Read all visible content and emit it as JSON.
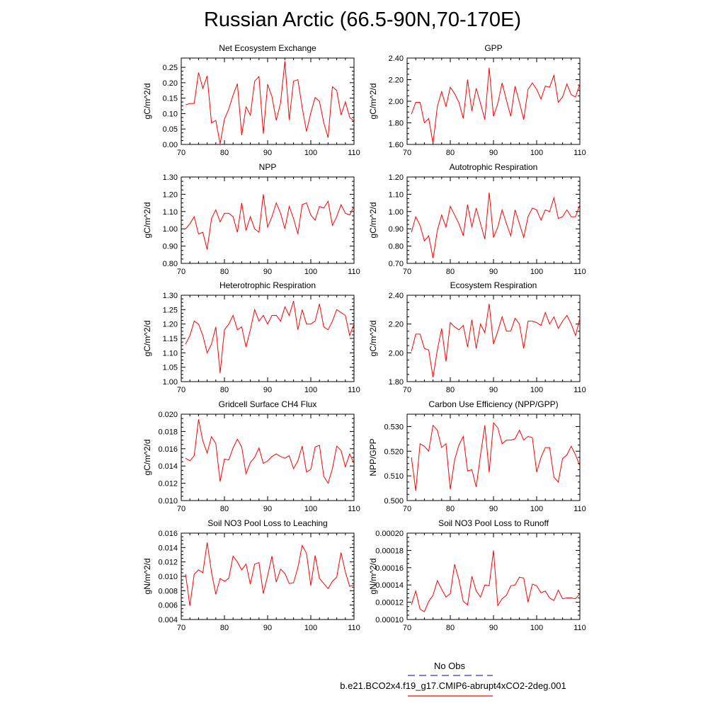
{
  "page_title": "Russian Arctic (66.5-90N,70-170E)",
  "legend": {
    "obs_label": "No Obs",
    "obs_color": "#3333cc",
    "run_label": "b.e21.BCO2x4.f19_g17.CMIP6-abrupt4xCO2-2deg.001",
    "run_color": "#ff0000"
  },
  "chart_data": [
    {
      "type": "line",
      "title": "Net Ecosystem Exchange",
      "ylabel": "gC/m^2/d",
      "xlim": [
        70,
        110
      ],
      "ylim": [
        0,
        0.28
      ],
      "xticks": [
        "70",
        "80",
        "90",
        "100",
        "110"
      ],
      "yticks": [
        {
          "v": 0,
          "label": "0.00"
        },
        {
          "v": 0.05,
          "label": "0.05"
        },
        {
          "v": 0.1,
          "label": "0.10"
        },
        {
          "v": 0.15,
          "label": "0.15"
        },
        {
          "v": 0.2,
          "label": "0.20"
        },
        {
          "v": 0.25,
          "label": "0.25"
        }
      ],
      "x": [
        71,
        72,
        73,
        74,
        75,
        76,
        77,
        78,
        79,
        80,
        81,
        82,
        83,
        84,
        85,
        86,
        87,
        88,
        89,
        90,
        91,
        92,
        93,
        94,
        95,
        96,
        97,
        98,
        99,
        100,
        101,
        102,
        103,
        104,
        105,
        106,
        107,
        108,
        109,
        110
      ],
      "values": [
        0.128,
        0.133,
        0.133,
        0.233,
        0.182,
        0.222,
        0.07,
        0.078,
        0.002,
        0.082,
        0.115,
        0.16,
        0.197,
        0.03,
        0.122,
        0.095,
        0.205,
        0.22,
        0.035,
        0.195,
        0.155,
        0.078,
        0.135,
        0.27,
        0.08,
        0.205,
        0.21,
        0.12,
        0.042,
        0.103,
        0.152,
        0.14,
        0.07,
        0.022,
        0.187,
        0.175,
        0.095,
        0.138,
        0.088,
        0.075
      ]
    },
    {
      "type": "line",
      "title": "GPP",
      "ylabel": "gC/m^2/d",
      "xlim": [
        70,
        110
      ],
      "ylim": [
        1.6,
        2.4
      ],
      "xticks": [
        "70",
        "80",
        "90",
        "100",
        "110"
      ],
      "yticks": [
        {
          "v": 1.6,
          "label": "1.60"
        },
        {
          "v": 1.8,
          "label": "1.80"
        },
        {
          "v": 2.0,
          "label": "2.00"
        },
        {
          "v": 2.2,
          "label": "2.20"
        },
        {
          "v": 2.4,
          "label": "2.40"
        }
      ],
      "x": [
        71,
        72,
        73,
        74,
        75,
        76,
        77,
        78,
        79,
        80,
        81,
        82,
        83,
        84,
        85,
        86,
        87,
        88,
        89,
        90,
        91,
        92,
        93,
        94,
        95,
        96,
        97,
        98,
        99,
        100,
        101,
        102,
        103,
        104,
        105,
        106,
        107,
        108,
        109,
        110
      ],
      "values": [
        1.88,
        1.99,
        1.99,
        1.8,
        1.84,
        1.61,
        1.95,
        2.09,
        1.95,
        2.13,
        2.07,
        1.99,
        1.84,
        2.2,
        1.91,
        2.12,
        1.98,
        1.83,
        2.31,
        1.86,
        1.98,
        2.17,
        2.01,
        1.86,
        2.14,
        1.99,
        1.83,
        2.11,
        2.17,
        2.11,
        2.02,
        2.14,
        2.13,
        2.24,
        1.99,
        2.04,
        2.16,
        2.06,
        2.04,
        2.16
      ]
    },
    {
      "type": "line",
      "title": "NPP",
      "ylabel": "gC/m^2/d",
      "xlim": [
        70,
        110
      ],
      "ylim": [
        0.8,
        1.3
      ],
      "xticks": [
        "70",
        "80",
        "90",
        "100",
        "110"
      ],
      "yticks": [
        {
          "v": 0.8,
          "label": "0.80"
        },
        {
          "v": 0.9,
          "label": "0.90"
        },
        {
          "v": 1.0,
          "label": "1.00"
        },
        {
          "v": 1.1,
          "label": "1.10"
        },
        {
          "v": 1.2,
          "label": "1.20"
        },
        {
          "v": 1.3,
          "label": "1.30"
        }
      ],
      "x": [
        71,
        72,
        73,
        74,
        75,
        76,
        77,
        78,
        79,
        80,
        81,
        82,
        83,
        84,
        85,
        86,
        87,
        88,
        89,
        90,
        91,
        92,
        93,
        94,
        95,
        96,
        97,
        98,
        99,
        100,
        101,
        102,
        103,
        104,
        105,
        106,
        107,
        108,
        109,
        110
      ],
      "values": [
        1.0,
        1.03,
        1.07,
        0.97,
        0.98,
        0.88,
        1.06,
        1.11,
        1.04,
        1.09,
        1.09,
        1.07,
        0.98,
        1.15,
        0.99,
        1.07,
        1.0,
        0.98,
        1.2,
        1.01,
        1.07,
        1.15,
        1.09,
        1.0,
        1.13,
        1.06,
        0.97,
        1.14,
        1.15,
        1.08,
        1.05,
        1.13,
        1.12,
        1.16,
        1.02,
        1.07,
        1.14,
        1.09,
        1.08,
        1.13
      ]
    },
    {
      "type": "line",
      "title": "Autotrophic Respiration",
      "ylabel": "gC/m^2/d",
      "xlim": [
        70,
        110
      ],
      "ylim": [
        0.7,
        1.2
      ],
      "xticks": [
        "70",
        "80",
        "90",
        "100",
        "110"
      ],
      "yticks": [
        {
          "v": 0.7,
          "label": "0.70"
        },
        {
          "v": 0.8,
          "label": "0.80"
        },
        {
          "v": 0.9,
          "label": "0.90"
        },
        {
          "v": 1.0,
          "label": "1.00"
        },
        {
          "v": 1.1,
          "label": "1.10"
        },
        {
          "v": 1.2,
          "label": "1.20"
        }
      ],
      "x": [
        71,
        72,
        73,
        74,
        75,
        76,
        77,
        78,
        79,
        80,
        81,
        82,
        83,
        84,
        85,
        86,
        87,
        88,
        89,
        90,
        91,
        92,
        93,
        94,
        95,
        96,
        97,
        98,
        99,
        100,
        101,
        102,
        103,
        104,
        105,
        106,
        107,
        108,
        109,
        110
      ],
      "values": [
        0.88,
        0.97,
        0.92,
        0.83,
        0.86,
        0.73,
        0.89,
        0.98,
        0.91,
        1.03,
        0.98,
        0.93,
        0.86,
        1.04,
        0.91,
        1.02,
        0.93,
        0.84,
        1.11,
        0.85,
        0.91,
        1.01,
        0.93,
        0.86,
        1.01,
        0.93,
        0.85,
        0.97,
        1.02,
        1.01,
        0.95,
        1.01,
        1.0,
        1.08,
        0.96,
        0.97,
        1.01,
        0.97,
        0.97,
        1.04
      ]
    },
    {
      "type": "line",
      "title": "Heterotrophic Respiration",
      "ylabel": "gC/m^2/d",
      "xlim": [
        70,
        110
      ],
      "ylim": [
        1.0,
        1.3
      ],
      "xticks": [
        "70",
        "80",
        "90",
        "100",
        "110"
      ],
      "yticks": [
        {
          "v": 1.0,
          "label": "1.00"
        },
        {
          "v": 1.05,
          "label": "1.05"
        },
        {
          "v": 1.1,
          "label": "1.10"
        },
        {
          "v": 1.15,
          "label": "1.15"
        },
        {
          "v": 1.2,
          "label": "1.20"
        },
        {
          "v": 1.25,
          "label": "1.25"
        },
        {
          "v": 1.3,
          "label": "1.30"
        }
      ],
      "x": [
        71,
        72,
        73,
        74,
        75,
        76,
        77,
        78,
        79,
        80,
        81,
        82,
        83,
        84,
        85,
        86,
        87,
        88,
        89,
        90,
        91,
        92,
        93,
        94,
        95,
        96,
        97,
        98,
        99,
        100,
        101,
        102,
        103,
        104,
        105,
        106,
        107,
        108,
        109,
        110
      ],
      "values": [
        1.13,
        1.16,
        1.21,
        1.2,
        1.16,
        1.1,
        1.13,
        1.19,
        1.03,
        1.18,
        1.2,
        1.23,
        1.18,
        1.19,
        1.12,
        1.18,
        1.25,
        1.21,
        1.23,
        1.2,
        1.23,
        1.23,
        1.21,
        1.26,
        1.23,
        1.28,
        1.18,
        1.25,
        1.2,
        1.2,
        1.21,
        1.27,
        1.19,
        1.18,
        1.21,
        1.25,
        1.24,
        1.23,
        1.16,
        1.2
      ]
    },
    {
      "type": "line",
      "title": "Ecosystem Respiration",
      "ylabel": "gC/m^2/d",
      "xlim": [
        70,
        110
      ],
      "ylim": [
        1.8,
        2.4
      ],
      "xticks": [
        "70",
        "80",
        "90",
        "100",
        "110"
      ],
      "yticks": [
        {
          "v": 1.8,
          "label": "1.80"
        },
        {
          "v": 2.0,
          "label": "2.00"
        },
        {
          "v": 2.2,
          "label": "2.20"
        },
        {
          "v": 2.4,
          "label": "2.40"
        }
      ],
      "x": [
        71,
        72,
        73,
        74,
        75,
        76,
        77,
        78,
        79,
        80,
        81,
        82,
        83,
        84,
        85,
        86,
        87,
        88,
        89,
        90,
        91,
        92,
        93,
        94,
        95,
        96,
        97,
        98,
        99,
        100,
        101,
        102,
        103,
        104,
        105,
        106,
        107,
        108,
        109,
        110
      ],
      "values": [
        2.01,
        2.13,
        2.13,
        2.03,
        2.02,
        1.83,
        2.02,
        2.17,
        1.94,
        2.21,
        2.18,
        2.16,
        2.19,
        2.04,
        2.23,
        2.03,
        2.2,
        2.14,
        2.34,
        2.06,
        2.15,
        2.25,
        2.15,
        2.15,
        2.24,
        2.2,
        2.03,
        2.22,
        2.22,
        2.21,
        2.19,
        2.28,
        2.2,
        2.25,
        2.17,
        2.22,
        2.26,
        2.2,
        2.12,
        2.24
      ]
    },
    {
      "type": "line",
      "title": "Gridcell Surface CH4 Flux",
      "ylabel": "gC/m^2/d",
      "xlim": [
        70,
        110
      ],
      "ylim": [
        0.01,
        0.02
      ],
      "xticks": [
        "70",
        "80",
        "90",
        "100",
        "110"
      ],
      "yticks": [
        {
          "v": 0.01,
          "label": "0.010"
        },
        {
          "v": 0.012,
          "label": "0.012"
        },
        {
          "v": 0.014,
          "label": "0.014"
        },
        {
          "v": 0.016,
          "label": "0.016"
        },
        {
          "v": 0.018,
          "label": "0.018"
        },
        {
          "v": 0.02,
          "label": "0.020"
        }
      ],
      "x": [
        71,
        72,
        73,
        74,
        75,
        76,
        77,
        78,
        79,
        80,
        81,
        82,
        83,
        84,
        85,
        86,
        87,
        88,
        89,
        90,
        91,
        92,
        93,
        94,
        95,
        96,
        97,
        98,
        99,
        100,
        101,
        102,
        103,
        104,
        105,
        106,
        107,
        108,
        109,
        110
      ],
      "values": [
        0.0149,
        0.0146,
        0.0152,
        0.0194,
        0.0169,
        0.0155,
        0.0174,
        0.0166,
        0.0122,
        0.0148,
        0.0147,
        0.0161,
        0.0171,
        0.0162,
        0.0131,
        0.0144,
        0.015,
        0.0161,
        0.0143,
        0.0146,
        0.0151,
        0.0154,
        0.0151,
        0.0149,
        0.0152,
        0.0137,
        0.0146,
        0.0163,
        0.0133,
        0.0136,
        0.0162,
        0.0164,
        0.0128,
        0.012,
        0.0137,
        0.0163,
        0.0158,
        0.0139,
        0.0154,
        0.0143
      ]
    },
    {
      "type": "line",
      "title": "Carbon Use Efficiency (NPP/GPP)",
      "ylabel": "NPP/GPP",
      "xlim": [
        70,
        110
      ],
      "ylim": [
        0.5,
        0.535
      ],
      "xticks": [
        "70",
        "80",
        "90",
        "100",
        "110"
      ],
      "yticks": [
        {
          "v": 0.5,
          "label": "0.500"
        },
        {
          "v": 0.51,
          "label": "0.510"
        },
        {
          "v": 0.52,
          "label": "0.520"
        },
        {
          "v": 0.53,
          "label": "0.530"
        }
      ],
      "x": [
        71,
        72,
        73,
        74,
        75,
        76,
        77,
        78,
        79,
        80,
        81,
        82,
        83,
        84,
        85,
        86,
        87,
        88,
        89,
        90,
        91,
        92,
        93,
        94,
        95,
        96,
        97,
        98,
        99,
        100,
        101,
        102,
        103,
        104,
        105,
        106,
        107,
        108,
        109,
        110
      ],
      "values": [
        0.5175,
        0.504,
        0.523,
        0.522,
        0.52,
        0.5305,
        0.5285,
        0.5215,
        0.523,
        0.5045,
        0.5165,
        0.5225,
        0.526,
        0.512,
        0.5125,
        0.5055,
        0.5185,
        0.5305,
        0.5115,
        0.5315,
        0.5295,
        0.523,
        0.5245,
        0.5245,
        0.525,
        0.5285,
        0.5245,
        0.526,
        0.5255,
        0.5115,
        0.5175,
        0.5215,
        0.5215,
        0.5095,
        0.5075,
        0.517,
        0.5185,
        0.522,
        0.5185,
        0.514
      ]
    },
    {
      "type": "line",
      "title": "Soil NO3 Pool Loss to Leaching",
      "ylabel": "gN/m^2/d",
      "xlim": [
        70,
        110
      ],
      "ylim": [
        0.004,
        0.016
      ],
      "xticks": [
        "70",
        "80",
        "90",
        "100",
        "110"
      ],
      "yticks": [
        {
          "v": 0.004,
          "label": "0.004"
        },
        {
          "v": 0.006,
          "label": "0.006"
        },
        {
          "v": 0.008,
          "label": "0.008"
        },
        {
          "v": 0.01,
          "label": "0.010"
        },
        {
          "v": 0.012,
          "label": "0.012"
        },
        {
          "v": 0.014,
          "label": "0.014"
        },
        {
          "v": 0.016,
          "label": "0.016"
        }
      ],
      "x": [
        71,
        72,
        73,
        74,
        75,
        76,
        77,
        78,
        79,
        80,
        81,
        82,
        83,
        84,
        85,
        86,
        87,
        88,
        89,
        90,
        91,
        92,
        93,
        94,
        95,
        96,
        97,
        98,
        99,
        100,
        101,
        102,
        103,
        104,
        105,
        106,
        107,
        108,
        109,
        110
      ],
      "values": [
        0.0103,
        0.0059,
        0.0103,
        0.0109,
        0.0105,
        0.0147,
        0.0106,
        0.0075,
        0.0097,
        0.0093,
        0.0097,
        0.0128,
        0.012,
        0.0109,
        0.0117,
        0.0089,
        0.0117,
        0.0119,
        0.0076,
        0.0101,
        0.0128,
        0.0092,
        0.011,
        0.0104,
        0.009,
        0.0091,
        0.0112,
        0.0143,
        0.0132,
        0.0087,
        0.0129,
        0.0097,
        0.009,
        0.0083,
        0.0093,
        0.0099,
        0.0133,
        0.0106,
        0.0086,
        0.0088
      ]
    },
    {
      "type": "line",
      "title": "Soil NO3 Pool Loss to Runoff",
      "ylabel": "gN/m^2/d",
      "xlim": [
        70,
        110
      ],
      "ylim": [
        0.0001,
        0.0002
      ],
      "xticks": [
        "70",
        "80",
        "90",
        "100",
        "110"
      ],
      "yticks": [
        {
          "v": 0.0001,
          "label": "0.00010"
        },
        {
          "v": 0.00012,
          "label": "0.00012"
        },
        {
          "v": 0.00014,
          "label": "0.00014"
        },
        {
          "v": 0.00016,
          "label": "0.00016"
        },
        {
          "v": 0.00018,
          "label": "0.00018"
        },
        {
          "v": 0.0002,
          "label": "0.00020"
        }
      ],
      "x": [
        71,
        72,
        73,
        74,
        75,
        76,
        77,
        78,
        79,
        80,
        81,
        82,
        83,
        84,
        85,
        86,
        87,
        88,
        89,
        90,
        91,
        92,
        93,
        94,
        95,
        96,
        97,
        98,
        99,
        100,
        101,
        102,
        103,
        104,
        105,
        106,
        107,
        108,
        109,
        110
      ],
      "values": [
        0.000117,
        0.000133,
        0.000112,
        0.000109,
        0.000121,
        0.000128,
        0.000145,
        0.000135,
        0.000126,
        0.00013,
        0.000164,
        0.000146,
        0.000121,
        0.000117,
        0.00015,
        0.000133,
        0.000126,
        0.00014,
        0.000139,
        0.00018,
        0.000116,
        0.000124,
        0.000128,
        0.000139,
        0.00014,
        0.000149,
        0.000148,
        0.00012,
        0.000141,
        0.000139,
        0.000131,
        0.000133,
        0.000125,
        0.000122,
        0.000134,
        0.000124,
        0.000125,
        0.000125,
        0.000124,
        0.00013
      ]
    }
  ]
}
